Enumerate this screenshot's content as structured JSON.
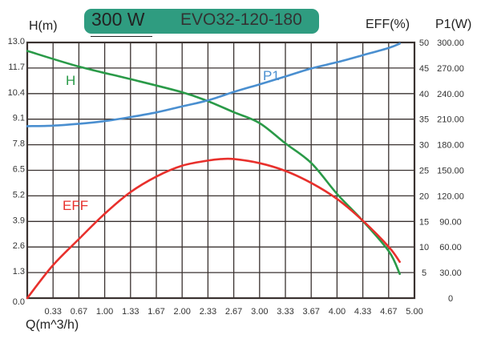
{
  "header": {
    "power": "300 W",
    "model": "EVO32-120-180",
    "badge_color": "#2f9c80"
  },
  "chart_data": {
    "type": "line",
    "xlabel": "Q(m^3/h)",
    "ylabel_left": "H(m)",
    "ylabel_right_eff": "EFF(%)",
    "ylabel_right_p1": "P1(W)",
    "xlim": [
      0,
      5.0
    ],
    "ylim_left": [
      0,
      13.0
    ],
    "ylim_eff": [
      0,
      50
    ],
    "ylim_p1": [
      0,
      300
    ],
    "grid": true,
    "x_ticks": [
      "0.33",
      "0.67",
      "1.00",
      "1.33",
      "1.67",
      "2.00",
      "2.33",
      "2.67",
      "3.00",
      "3.33",
      "3.67",
      "4.00",
      "4.33",
      "4.67",
      "5.00"
    ],
    "y_left_ticks": [
      "0.0",
      "1.3",
      "2.6",
      "3.9",
      "5.2",
      "6.5",
      "7.8",
      "9.1",
      "10.4",
      "11.7",
      "13.0"
    ],
    "y_eff_ticks": [
      "",
      "5",
      "10",
      "15",
      "20",
      "25",
      "30",
      "35",
      "40",
      "45",
      "50"
    ],
    "y_p1_ticks": [
      "0",
      "30.00",
      "60.00",
      "90.00",
      "120.00",
      "150.00",
      "180.00",
      "210.00",
      "240.00",
      "270.00",
      "300.00"
    ],
    "series": [
      {
        "name": "H",
        "axis": "left",
        "color": "#2a9a48",
        "x": [
          0,
          0.67,
          1.33,
          2.0,
          2.33,
          2.67,
          3.0,
          3.33,
          3.67,
          4.0,
          4.33,
          4.67,
          4.81
        ],
        "y": [
          12.57,
          11.77,
          11.14,
          10.47,
          10.02,
          9.45,
          8.9,
          7.88,
          6.86,
          5.3,
          3.94,
          2.38,
          1.23
        ]
      },
      {
        "name": "P1",
        "axis": "p1",
        "color": "#4a8fd0",
        "x": [
          0,
          0.33,
          0.67,
          1.0,
          1.33,
          1.67,
          2.0,
          2.33,
          2.67,
          3.0,
          3.33,
          3.67,
          4.0,
          4.33,
          4.67,
          4.81
        ],
        "y": [
          201.8,
          202.4,
          204.6,
          207.7,
          212.4,
          218,
          225,
          232,
          242,
          250.9,
          260,
          269.6,
          276.8,
          285,
          293.7,
          298.7
        ]
      },
      {
        "name": "EFF",
        "axis": "eff",
        "color": "#e8302c",
        "x": [
          0,
          0.33,
          0.67,
          1.0,
          1.33,
          1.67,
          2.0,
          2.33,
          2.5,
          2.67,
          3.0,
          3.33,
          3.67,
          4.0,
          4.33,
          4.67,
          4.81
        ],
        "y": [
          0,
          6.4,
          11.6,
          16.5,
          20.7,
          23.8,
          25.9,
          26.9,
          27.2,
          27.2,
          26.4,
          24.9,
          22.5,
          19.4,
          15.2,
          10,
          7.1
        ]
      }
    ]
  }
}
